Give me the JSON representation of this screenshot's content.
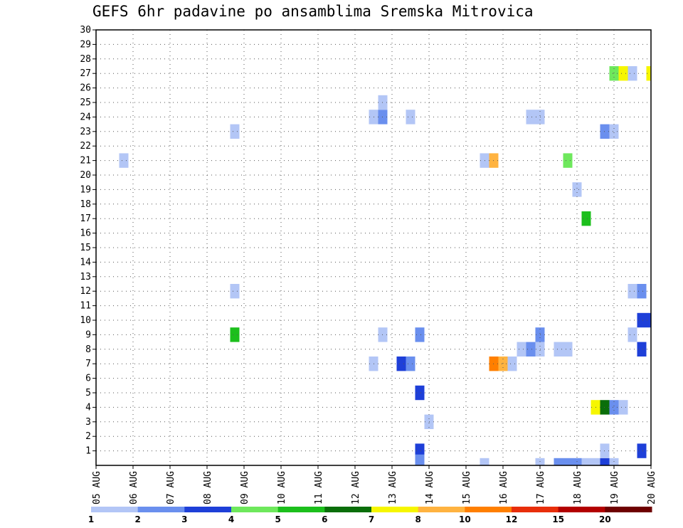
{
  "chart_data": {
    "type": "heatmap",
    "title": "GEFS 6hr padavine po ansamblima Sremska Mitrovica",
    "x_tick_labels": [
      "05 AUG",
      "06 AUG",
      "07 AUG",
      "08 AUG",
      "09 AUG",
      "10 AUG",
      "11 AUG",
      "12 AUG",
      "13 AUG",
      "14 AUG",
      "15 AUG",
      "16 AUG",
      "17 AUG",
      "18 AUG",
      "19 AUG",
      "20 AUG"
    ],
    "y_tick_labels": [
      "1",
      "2",
      "3",
      "4",
      "5",
      "6",
      "7",
      "8",
      "9",
      "10",
      "11",
      "12",
      "13",
      "14",
      "15",
      "16",
      "17",
      "18",
      "19",
      "20",
      "21",
      "22",
      "23",
      "24",
      "25",
      "26",
      "27",
      "28",
      "29",
      "30"
    ],
    "xlim_days": [
      0,
      15
    ],
    "ylim_members": [
      0,
      30
    ],
    "grid": "dotted",
    "legend": {
      "position": "bottom",
      "labels": [
        "1",
        "2",
        "3",
        "4",
        "5",
        "6",
        "7",
        "8",
        "10",
        "12",
        "15",
        "20"
      ],
      "colors": [
        "#b3c6f6",
        "#6a8fee",
        "#1e3fd8",
        "#6ee85c",
        "#1cbf1c",
        "#0a6e0a",
        "#f6f600",
        "#ffb340",
        "#ff7f00",
        "#e82e0a",
        "#b30000",
        "#6e0000"
      ]
    },
    "cell_width_days": 0.25,
    "cell_height_members": 1,
    "cells": [
      {
        "t": 8.75,
        "m": 0,
        "v": 1
      },
      {
        "t": 8.75,
        "m": 1,
        "v": 3
      },
      {
        "t": 8.75,
        "m": 0.25,
        "v": 2
      },
      {
        "t": 10.5,
        "m": 0,
        "v": 1
      },
      {
        "t": 12,
        "m": 0,
        "v": 1
      },
      {
        "t": 12.5,
        "m": 0,
        "v": 2
      },
      {
        "t": 12.75,
        "m": 0,
        "v": 2
      },
      {
        "t": 13,
        "m": 0,
        "v": 2
      },
      {
        "t": 13.25,
        "m": 0,
        "v": 1
      },
      {
        "t": 13.5,
        "m": 0,
        "v": 1
      },
      {
        "t": 13.75,
        "m": 0,
        "v": 3
      },
      {
        "t": 14,
        "m": 0,
        "v": 1
      },
      {
        "t": 13.75,
        "m": 1,
        "v": 1
      },
      {
        "t": 14.75,
        "m": 1,
        "v": 3
      },
      {
        "t": 9.0,
        "m": 3,
        "v": 1
      },
      {
        "t": 13.5,
        "m": 4,
        "v": 7
      },
      {
        "t": 13.75,
        "m": 4,
        "v": 6
      },
      {
        "t": 14.0,
        "m": 4,
        "v": 2
      },
      {
        "t": 14.25,
        "m": 4,
        "v": 1
      },
      {
        "t": 8.75,
        "m": 5,
        "v": 3
      },
      {
        "t": 7.5,
        "m": 7,
        "v": 1
      },
      {
        "t": 8.25,
        "m": 7,
        "v": 3
      },
      {
        "t": 8.5,
        "m": 7,
        "v": 2
      },
      {
        "t": 10.75,
        "m": 7,
        "v": 10
      },
      {
        "t": 11,
        "m": 7,
        "v": 8
      },
      {
        "t": 11.25,
        "m": 7,
        "v": 1
      },
      {
        "t": 11.5,
        "m": 8,
        "v": 1
      },
      {
        "t": 11.75,
        "m": 8,
        "v": 2
      },
      {
        "t": 12,
        "m": 8,
        "v": 1
      },
      {
        "t": 12.5,
        "m": 8,
        "v": 1
      },
      {
        "t": 12.75,
        "m": 8,
        "v": 1
      },
      {
        "t": 14.75,
        "m": 8,
        "v": 3
      },
      {
        "t": 3.75,
        "m": 9,
        "v": 5
      },
      {
        "t": 7.75,
        "m": 9,
        "v": 1
      },
      {
        "t": 8.75,
        "m": 9,
        "v": 2
      },
      {
        "t": 12,
        "m": 9,
        "v": 2
      },
      {
        "t": 14.5,
        "m": 9,
        "v": 1
      },
      {
        "t": 14.75,
        "m": 10,
        "v": 3
      },
      {
        "t": 15,
        "m": 10,
        "v": 3
      },
      {
        "t": 3.75,
        "m": 12,
        "v": 1
      },
      {
        "t": 14.5,
        "m": 12,
        "v": 1
      },
      {
        "t": 14.75,
        "m": 12,
        "v": 2
      },
      {
        "t": 13.25,
        "m": 17,
        "v": 5
      },
      {
        "t": 13.0,
        "m": 19,
        "v": 1
      },
      {
        "t": 0.75,
        "m": 21,
        "v": 1
      },
      {
        "t": 10.5,
        "m": 21,
        "v": 1
      },
      {
        "t": 10.75,
        "m": 21,
        "v": 8
      },
      {
        "t": 12.75,
        "m": 21,
        "v": 4
      },
      {
        "t": 3.75,
        "m": 23,
        "v": 1
      },
      {
        "t": 13.75,
        "m": 23,
        "v": 2
      },
      {
        "t": 14,
        "m": 23,
        "v": 1
      },
      {
        "t": 7.5,
        "m": 24,
        "v": 1
      },
      {
        "t": 7.75,
        "m": 24,
        "v": 2
      },
      {
        "t": 8.5,
        "m": 24,
        "v": 1
      },
      {
        "t": 11.75,
        "m": 24,
        "v": 1
      },
      {
        "t": 12,
        "m": 24,
        "v": 1
      },
      {
        "t": 7.75,
        "m": 25,
        "v": 1
      },
      {
        "t": 14.0,
        "m": 27,
        "v": 4
      },
      {
        "t": 14.25,
        "m": 27,
        "v": 7
      },
      {
        "t": 14.5,
        "m": 27,
        "v": 1
      },
      {
        "t": 15.0,
        "m": 27,
        "v": 7
      }
    ]
  }
}
